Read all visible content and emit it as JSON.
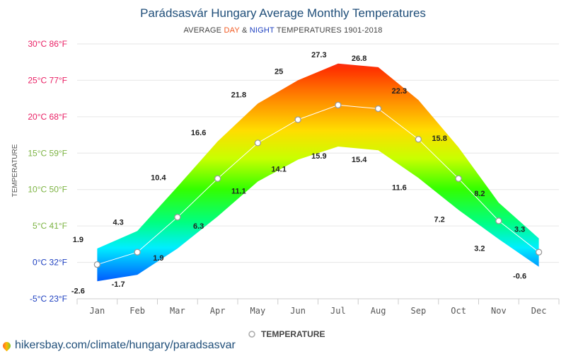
{
  "chart_data": {
    "type": "area",
    "title": "Parádsasvár Hungary Average Monthly Temperatures",
    "subtitle": {
      "prefix": "AVERAGE ",
      "day": "DAY",
      "amp": " & ",
      "night": "NIGHT",
      "suffix": " TEMPERATURES 1901-2018"
    },
    "ylabel": "TEMPERATURE",
    "ylim": [
      -5,
      30
    ],
    "grid": true,
    "legend_placement": "bottom-center",
    "categories": [
      "Jan",
      "Feb",
      "Mar",
      "Apr",
      "May",
      "Jun",
      "Jul",
      "Aug",
      "Sep",
      "Oct",
      "Nov",
      "Dec"
    ],
    "yticks": [
      {
        "value": 30,
        "label": "30°C 86°F",
        "color": "#e91e63"
      },
      {
        "value": 25,
        "label": "25°C 77°F",
        "color": "#e91e63"
      },
      {
        "value": 20,
        "label": "20°C 68°F",
        "color": "#e91e63"
      },
      {
        "value": 15,
        "label": "15°C 59°F",
        "color": "#7cb342"
      },
      {
        "value": 10,
        "label": "10°C 50°F",
        "color": "#7cb342"
      },
      {
        "value": 5,
        "label": "5°C 41°F",
        "color": "#7cb342"
      },
      {
        "value": 0,
        "label": "0°C 32°F",
        "color": "#1e40c0"
      },
      {
        "value": -5,
        "label": "-5°C 23°F",
        "color": "#1e40c0"
      }
    ],
    "series": [
      {
        "name": "DAY",
        "values": [
          1.9,
          4.3,
          10.4,
          16.6,
          21.8,
          25,
          27.3,
          26.8,
          22.3,
          15.8,
          8.2,
          3.3
        ]
      },
      {
        "name": "NIGHT",
        "values": [
          -2.6,
          -1.7,
          1.9,
          6.3,
          11.1,
          14.1,
          15.9,
          15.4,
          11.6,
          7.2,
          3.2,
          -0.6
        ]
      },
      {
        "name": "TEMPERATURE",
        "values": [
          -0.3,
          1.4,
          6.2,
          11.5,
          16.4,
          19.6,
          21.6,
          21.1,
          16.9,
          11.5,
          5.7,
          1.4
        ]
      }
    ],
    "day_labels": [
      "1.9",
      "4.3",
      "10.4",
      "16.6",
      "21.8",
      "25",
      "27.3",
      "26.8",
      "22.3",
      "15.8",
      "8.2",
      "3.3"
    ],
    "night_labels": [
      "-2.6",
      "-1.7",
      "1.9",
      "6.3",
      "11.1",
      "14.1",
      "15.9",
      "15.4",
      "11.6",
      "7.2",
      "3.2",
      "-0.6"
    ],
    "legend": "TEMPERATURE",
    "colors": {
      "day": "#f15a22",
      "night": "#1e40c0",
      "title": "#1f4e79",
      "grid": "#e6e6e6",
      "gradient": [
        "#e8194f",
        "#ff5a00",
        "#ffb300",
        "#ffff00",
        "#7cfc00",
        "#00ff40",
        "#00ffd0",
        "#00b0ff",
        "#0040ff"
      ]
    }
  },
  "footer": {
    "text": "hikersbay.com/climate/hungary/paradsasvar",
    "icon": "map-pin-icon"
  }
}
